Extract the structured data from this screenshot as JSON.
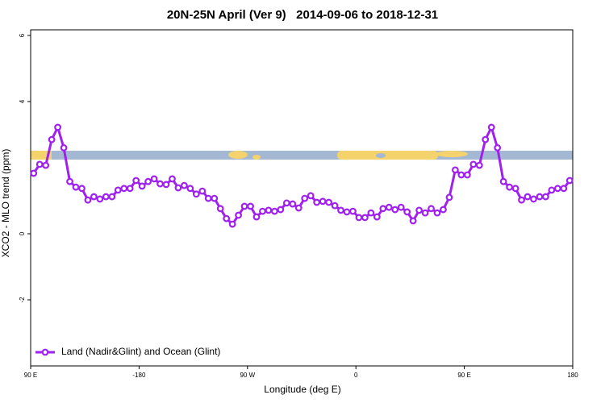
{
  "chart_data": {
    "type": "line",
    "title": "20N-25N April (Ver 9)   2014-09-06 to 2018-12-31",
    "xlabel": "Longitude (deg E)",
    "ylabel": "XCO2 - MLO trend (ppm)",
    "x": [
      -267.5,
      -262.5,
      -257.5,
      -252.5,
      -247.5,
      -242.5,
      -237.5,
      -232.5,
      -227.5,
      -222.5,
      -217.5,
      -212.5,
      -207.5,
      -202.5,
      -197.5,
      -192.5,
      -187.5,
      -182.5,
      -177.5,
      -172.5,
      -167.5,
      -162.5,
      -157.5,
      -152.5,
      -147.5,
      -142.5,
      -137.5,
      -132.5,
      -127.5,
      -122.5,
      -117.5,
      -112.5,
      -107.5,
      -102.5,
      -97.5,
      -92.5,
      -87.5,
      -82.5,
      -77.5,
      -72.5,
      -67.5,
      -62.5,
      -57.5,
      -52.5,
      -47.5,
      -42.5,
      -37.5,
      -32.5,
      -27.5,
      -22.5,
      -17.5,
      -12.5,
      -7.5,
      -2.5,
      2.5,
      7.5,
      12.5,
      17.5,
      22.5,
      27.5,
      32.5,
      37.5,
      42.5,
      47.5,
      52.5,
      57.5,
      62.5,
      67.5,
      72.5,
      77.5,
      82.5,
      87.5,
      92.5,
      97.5,
      102.5,
      107.5,
      112.5,
      117.5,
      122.5,
      127.5,
      132.5,
      137.5,
      142.5,
      147.5,
      152.5,
      157.5,
      162.5,
      167.5,
      172.5,
      177.5
    ],
    "series": [
      {
        "name": "Land (Nadir&Glint) and Ocean (Glint)",
        "color": "#a020f0",
        "values": [
          1.83,
          2.1,
          2.07,
          2.85,
          3.22,
          2.6,
          1.58,
          1.41,
          1.37,
          1.02,
          1.12,
          1.05,
          1.12,
          1.12,
          1.32,
          1.37,
          1.37,
          1.61,
          1.44,
          1.58,
          1.66,
          1.51,
          1.49,
          1.66,
          1.39,
          1.46,
          1.37,
          1.2,
          1.29,
          1.07,
          1.07,
          0.76,
          0.46,
          0.29,
          0.56,
          0.83,
          0.83,
          0.51,
          0.68,
          0.71,
          0.68,
          0.73,
          0.93,
          0.9,
          0.78,
          1.07,
          1.15,
          0.95,
          0.98,
          0.95,
          0.85,
          0.71,
          0.66,
          0.68,
          0.49,
          0.49,
          0.63,
          0.51,
          0.76,
          0.8,
          0.73,
          0.8,
          0.66,
          0.39,
          0.71,
          0.63,
          0.76,
          0.63,
          0.73,
          1.1,
          1.93,
          1.78,
          1.78,
          2.1,
          2.07,
          2.85,
          3.22,
          2.6,
          1.58,
          1.41,
          1.37,
          1.02,
          1.12,
          1.05,
          1.12,
          1.12,
          1.32,
          1.37,
          1.37,
          1.61
        ]
      }
    ],
    "xlim": [
      -270,
      180
    ],
    "xticks": [
      {
        "value": -270,
        "label": "90 E"
      },
      -180,
      {
        "value": -90,
        "label": "90 W"
      },
      0,
      {
        "value": 90,
        "label": "90 E"
      },
      180
    ],
    "ylim": [
      -4,
      6.17
    ],
    "yticks": [
      -2,
      0,
      4,
      6
    ],
    "legend": "bottom-left"
  }
}
